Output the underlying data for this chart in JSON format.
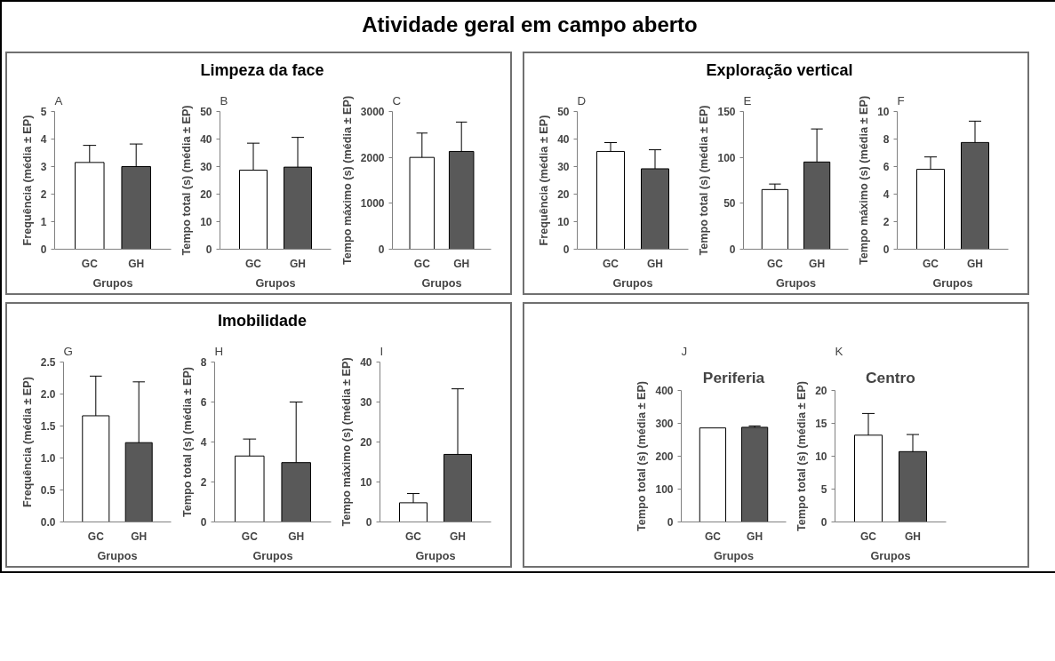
{
  "chart_data": [
    {
      "type": "bar",
      "title": "A",
      "annotations": [
        "Atividade geral em campo aberto",
        "Limpeza da face"
      ],
      "xlabel": "Grupos",
      "ylabel": "Frequência (média ± EP)",
      "categories": [
        "GC",
        "GH"
      ],
      "values": [
        3.15,
        3.0
      ],
      "errors": [
        [
          3.15,
          3.77
        ],
        [
          3.0,
          3.82
        ]
      ],
      "colors": [
        "#ffffff",
        "#595959"
      ],
      "ylim": [
        0,
        5
      ],
      "yticks": [
        0,
        1,
        2,
        3,
        4,
        5
      ],
      "grid": false
    },
    {
      "type": "bar",
      "title": "B",
      "xlabel": "Grupos",
      "ylabel": "Tempo total (s) (média ± EP)",
      "categories": [
        "GC",
        "GH"
      ],
      "values": [
        28.7,
        29.8
      ],
      "errors": [
        [
          28.7,
          38.5
        ],
        [
          29.8,
          40.6
        ]
      ],
      "colors": [
        "#ffffff",
        "#595959"
      ],
      "ylim": [
        0,
        50
      ],
      "yticks": [
        0,
        10,
        20,
        30,
        40,
        50
      ],
      "grid": false
    },
    {
      "type": "bar",
      "title": "C",
      "xlabel": "Grupos",
      "ylabel": "Tempo máximo (s) (média ± EP)",
      "categories": [
        "GC",
        "GH"
      ],
      "values": [
        2000,
        2130
      ],
      "errors": [
        [
          2000,
          2530
        ],
        [
          2130,
          2770
        ]
      ],
      "colors": [
        "#ffffff",
        "#595959"
      ],
      "ylim": [
        0,
        3000
      ],
      "yticks": [
        0,
        1000,
        2000,
        3000
      ],
      "grid": false
    },
    {
      "type": "bar",
      "title": "D",
      "annotations": [
        "Exploração vertical"
      ],
      "xlabel": "Grupos",
      "ylabel": "Frequência (média ± EP)",
      "categories": [
        "GC",
        "GH"
      ],
      "values": [
        35.5,
        29.2
      ],
      "errors": [
        [
          35.5,
          38.7
        ],
        [
          29.2,
          36.1
        ]
      ],
      "colors": [
        "#ffffff",
        "#595959"
      ],
      "ylim": [
        0,
        50
      ],
      "yticks": [
        0,
        10,
        20,
        30,
        40,
        50
      ],
      "grid": false
    },
    {
      "type": "bar",
      "title": "E",
      "xlabel": "Grupos",
      "ylabel": "Tempo total (s) (média ± EP)",
      "categories": [
        "GC",
        "GH"
      ],
      "values": [
        65,
        95
      ],
      "errors": [
        [
          65,
          71
        ],
        [
          95,
          131
        ]
      ],
      "colors": [
        "#ffffff",
        "#595959"
      ],
      "ylim": [
        0,
        150
      ],
      "yticks": [
        0,
        50,
        100,
        150
      ],
      "grid": false
    },
    {
      "type": "bar",
      "title": "F",
      "xlabel": "Grupos",
      "ylabel": "Tempo máximo (s) (média ± EP)",
      "categories": [
        "GC",
        "GH"
      ],
      "values": [
        5.8,
        7.75
      ],
      "errors": [
        [
          5.8,
          6.7
        ],
        [
          7.75,
          9.3
        ]
      ],
      "colors": [
        "#ffffff",
        "#595959"
      ],
      "ylim": [
        0,
        10
      ],
      "yticks": [
        0,
        2,
        4,
        6,
        8,
        10
      ],
      "grid": false
    },
    {
      "type": "bar",
      "title": "G",
      "annotations": [
        "Imobilidade"
      ],
      "xlabel": "Grupos",
      "ylabel": "Frequência (média ± EP)",
      "categories": [
        "GC",
        "GH"
      ],
      "values": [
        1.66,
        1.24
      ],
      "errors": [
        [
          1.66,
          2.28
        ],
        [
          1.24,
          2.19
        ]
      ],
      "colors": [
        "#ffffff",
        "#595959"
      ],
      "ylim": [
        0,
        2.5
      ],
      "yticks": [
        {
          "value": 0,
          "label": "0.0"
        },
        0.5,
        {
          "value": 1,
          "label": "1.0"
        },
        1.5,
        {
          "value": 2,
          "label": "2.0"
        },
        2.5
      ],
      "grid": false
    },
    {
      "type": "bar",
      "title": "H",
      "xlabel": "Grupos",
      "ylabel": "Tempo total (s) (média ± EP)",
      "categories": [
        "GC",
        "GH"
      ],
      "values": [
        3.3,
        2.97
      ],
      "errors": [
        [
          3.3,
          4.15
        ],
        [
          2.97,
          6.0
        ]
      ],
      "colors": [
        "#ffffff",
        "#595959"
      ],
      "ylim": [
        0,
        8
      ],
      "yticks": [
        0,
        2,
        4,
        6,
        8
      ],
      "grid": false
    },
    {
      "type": "bar",
      "title": "I",
      "xlabel": "Grupos",
      "ylabel": "Tempo máximo (s) (média ± EP)",
      "categories": [
        "GC",
        "GH"
      ],
      "values": [
        4.8,
        16.9
      ],
      "errors": [
        [
          4.8,
          7.1
        ],
        [
          16.9,
          33.3
        ]
      ],
      "colors": [
        "#ffffff",
        "#595959"
      ],
      "ylim": [
        0,
        40
      ],
      "yticks": [
        0,
        10,
        20,
        30,
        40
      ],
      "grid": false
    },
    {
      "type": "bar",
      "title": "J",
      "subtitle": "Periferia",
      "xlabel": "Grupos",
      "ylabel": "Tempo total (s) (média ± EP)",
      "categories": [
        "GC",
        "GH"
      ],
      "values": [
        286,
        288
      ],
      "errors": [
        null,
        [
          288,
          292
        ]
      ],
      "colors": [
        "#ffffff",
        "#595959"
      ],
      "ylim": [
        0,
        400
      ],
      "yticks": [
        0,
        100,
        200,
        300,
        400
      ],
      "grid": false
    },
    {
      "type": "bar",
      "title": "K",
      "subtitle": "Centro",
      "xlabel": "Grupos",
      "ylabel": "Tempo total (s) (média ± EP)",
      "categories": [
        "GC",
        "GH"
      ],
      "values": [
        13.2,
        10.7
      ],
      "errors": [
        [
          13.2,
          16.5
        ],
        [
          10.7,
          13.3
        ]
      ],
      "colors": [
        "#ffffff",
        "#595959"
      ],
      "ylim": [
        0,
        20
      ],
      "yticks": [
        0,
        5,
        10,
        15,
        20
      ],
      "grid": false
    }
  ]
}
